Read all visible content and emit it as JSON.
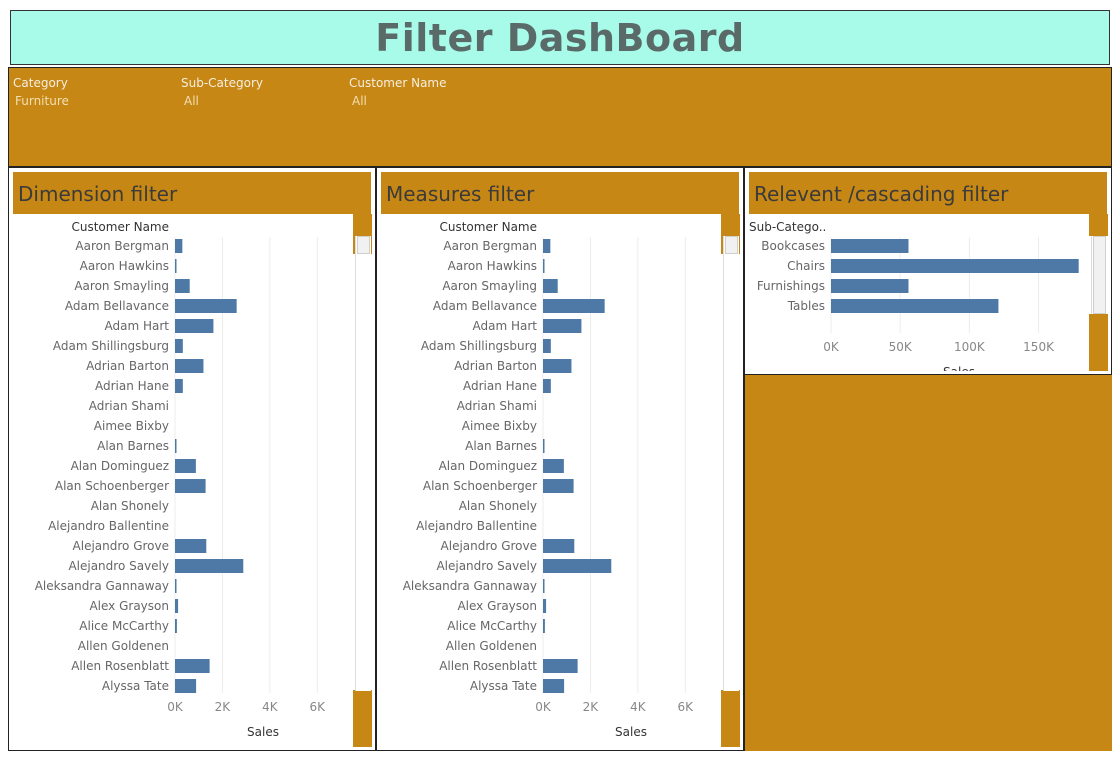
{
  "dashboard": {
    "title": "Filter DashBoard"
  },
  "filters": [
    {
      "label": "Category",
      "value": "Furniture"
    },
    {
      "label": "Sub-Category",
      "value": "All"
    },
    {
      "label": "Customer Name",
      "value": "All"
    }
  ],
  "panels": {
    "dimension": {
      "title": "Dimension filter"
    },
    "measures": {
      "title": "Measures filter"
    },
    "relevant": {
      "title": "Relevent /cascading filter"
    }
  },
  "colors": {
    "bar": "#4e79a7",
    "panel_bg": "#c78714",
    "title_bg": "#a8fbe9"
  },
  "chart_data": [
    {
      "type": "bar",
      "orientation": "horizontal",
      "row_header": "Customer Name",
      "xlabel": "Sales",
      "xlim": [
        0,
        7000
      ],
      "x_ticks": [
        "0K",
        "2K",
        "4K",
        "6K"
      ],
      "tick_values": [
        0,
        2000,
        4000,
        6000
      ],
      "categories": [
        "Aaron Bergman",
        "Aaron Hawkins",
        "Aaron Smayling",
        "Adam Bellavance",
        "Adam Hart",
        "Adam Shillingsburg",
        "Adrian Barton",
        "Adrian Hane",
        "Adrian Shami",
        "Aimee Bixby",
        "Alan Barnes",
        "Alan Dominguez",
        "Alan Schoenberger",
        "Alan Shonely",
        "Alejandro Ballentine",
        "Alejandro Grove",
        "Alejandro Savely",
        "Aleksandra Gannaway",
        "Alex Grayson",
        "Alice McCarthy",
        "Allen Goldenen",
        "Allen Rosenblatt",
        "Alyssa Tate"
      ],
      "values": [
        310,
        60,
        620,
        2600,
        1620,
        330,
        1200,
        330,
        0,
        0,
        50,
        880,
        1290,
        0,
        0,
        1320,
        2880,
        50,
        130,
        80,
        0,
        1460,
        890
      ]
    },
    {
      "type": "bar",
      "orientation": "horizontal",
      "row_header": "Customer Name",
      "xlabel": "Sales",
      "xlim": [
        0,
        7000
      ],
      "x_ticks": [
        "0K",
        "2K",
        "4K",
        "6K"
      ],
      "tick_values": [
        0,
        2000,
        4000,
        6000
      ],
      "categories": [
        "Aaron Bergman",
        "Aaron Hawkins",
        "Aaron Smayling",
        "Adam Bellavance",
        "Adam Hart",
        "Adam Shillingsburg",
        "Adrian Barton",
        "Adrian Hane",
        "Adrian Shami",
        "Aimee Bixby",
        "Alan Barnes",
        "Alan Dominguez",
        "Alan Schoenberger",
        "Alan Shonely",
        "Alejandro Ballentine",
        "Alejandro Grove",
        "Alejandro Savely",
        "Aleksandra Gannaway",
        "Alex Grayson",
        "Alice McCarthy",
        "Allen Goldenen",
        "Allen Rosenblatt",
        "Alyssa Tate"
      ],
      "values": [
        310,
        60,
        620,
        2600,
        1620,
        330,
        1200,
        330,
        0,
        0,
        50,
        880,
        1290,
        0,
        0,
        1320,
        2880,
        50,
        130,
        80,
        0,
        1460,
        890
      ]
    },
    {
      "type": "bar",
      "orientation": "horizontal",
      "row_header": "Sub-Catego..",
      "xlabel": "Sales",
      "xlim": [
        0,
        185000
      ],
      "x_ticks": [
        "0K",
        "50K",
        "100K",
        "150K"
      ],
      "tick_values": [
        0,
        50000,
        100000,
        150000
      ],
      "categories": [
        "Bookcases",
        "Chairs",
        "Furnishings",
        "Tables"
      ],
      "values": [
        56000,
        179000,
        56000,
        121000
      ]
    }
  ]
}
